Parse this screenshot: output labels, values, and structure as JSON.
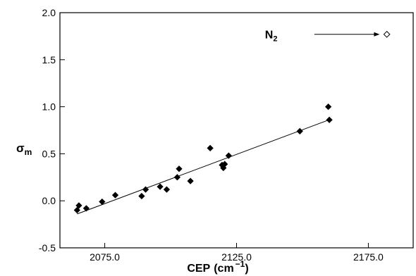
{
  "chart_data": {
    "type": "scatter",
    "xlabel": "CEP",
    "xunit_main": "(cm",
    "xunit_sup": "−1",
    "xunit_close": ")",
    "ylabel_main": "σ",
    "ylabel_sub": "m",
    "xlim": [
      2058,
      2192
    ],
    "ylim": [
      -0.5,
      2.0
    ],
    "xticks": [
      2075,
      2125,
      2175
    ],
    "xtick_labels": [
      "2075.0",
      "2125.0",
      "2175.0"
    ],
    "yticks": [
      -0.5,
      0.0,
      0.5,
      1.0,
      1.5,
      2.0
    ],
    "ytick_labels": [
      "-0.5",
      "0.0",
      "0.5",
      "1.0",
      "1.5",
      "2.0"
    ],
    "grid": false,
    "series": [
      {
        "marker": "filled-diamond",
        "color": "#000000",
        "x": [
          2064.5,
          2065.2,
          2068.0,
          2074.0,
          2079.0,
          2089.0,
          2090.5,
          2096.0,
          2098.5,
          2102.5,
          2103.2,
          2107.5,
          2115.0,
          2119.5,
          2120.0,
          2120.5,
          2122.0,
          2149.0,
          2159.8,
          2160.2
        ],
        "y": [
          -0.1,
          -0.05,
          -0.08,
          -0.01,
          0.06,
          0.05,
          0.12,
          0.15,
          0.12,
          0.25,
          0.34,
          0.21,
          0.56,
          0.38,
          0.35,
          0.39,
          0.48,
          0.74,
          1.0,
          0.86
        ]
      },
      {
        "marker": "open-diamond",
        "color": "#000000",
        "x": [
          2182.0
        ],
        "y": [
          1.77
        ]
      }
    ],
    "fit_line": {
      "x": [
        2064.5,
        2160.0
      ],
      "y": [
        -0.14,
        0.86
      ]
    },
    "annotation": {
      "main": "N",
      "sub": "2",
      "target": {
        "x": 2182.0,
        "y": 1.77
      },
      "arrow_from_x": 2154.5
    }
  }
}
